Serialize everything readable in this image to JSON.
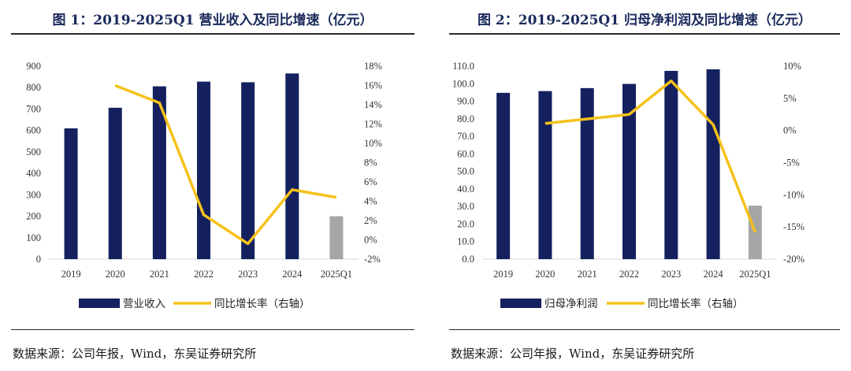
{
  "charts": [
    {
      "title": "图 1：2019-2025Q1 营业收入及同比增速（亿元）",
      "source": "数据来源：公司年报，Wind，东吴证券研究所",
      "chart_data": {
        "type": "bar",
        "categories": [
          "2019",
          "2020",
          "2021",
          "2022",
          "2023",
          "2024",
          "2025Q1"
        ],
        "series": [
          {
            "name": "营业收入",
            "type": "bar",
            "axis": "left",
            "values": [
              610,
              706,
              806,
              828,
              825,
              866,
              200
            ],
            "colors": [
              "#14215e",
              "#14215e",
              "#14215e",
              "#14215e",
              "#14215e",
              "#14215e",
              "#a6a6a6"
            ]
          },
          {
            "name": "同比增长率（右轴）",
            "type": "line",
            "axis": "right",
            "color": "#f5c21b",
            "values": [
              null,
              16.0,
              14.2,
              2.6,
              -0.4,
              5.2,
              4.4
            ]
          }
        ],
        "left_axis": {
          "min": 0,
          "max": 900,
          "ticks": [
            "0",
            "100",
            "200",
            "300",
            "400",
            "500",
            "600",
            "700",
            "800",
            "900"
          ]
        },
        "right_axis": {
          "min": -2,
          "max": 18,
          "ticks": [
            "-2%",
            "0%",
            "2%",
            "4%",
            "6%",
            "8%",
            "10%",
            "12%",
            "14%",
            "16%",
            "18%"
          ]
        },
        "legend_position": "bottom",
        "grid": false
      }
    },
    {
      "title": "图 2：2019-2025Q1 归母净利润及同比增速（亿元）",
      "source": "数据来源：公司年报，Wind，东吴证券研究所",
      "chart_data": {
        "type": "bar",
        "categories": [
          "2019",
          "2020",
          "2021",
          "2022",
          "2023",
          "2024",
          "2025Q1"
        ],
        "series": [
          {
            "name": "归母净利润",
            "type": "bar",
            "axis": "left",
            "values": [
              94.8,
              95.8,
              97.5,
              99.9,
              107.3,
              108.2,
              30.5
            ],
            "colors": [
              "#14215e",
              "#14215e",
              "#14215e",
              "#14215e",
              "#14215e",
              "#14215e",
              "#a6a6a6"
            ]
          },
          {
            "name": "同比增长率（右轴）",
            "type": "line",
            "axis": "right",
            "color": "#f5c21b",
            "values": [
              null,
              1.1,
              1.8,
              2.5,
              7.7,
              0.9,
              -15.8
            ]
          }
        ],
        "left_axis": {
          "min": 0,
          "max": 110,
          "ticks": [
            "0.0",
            "10.0",
            "20.0",
            "30.0",
            "40.0",
            "50.0",
            "60.0",
            "70.0",
            "80.0",
            "90.0",
            "100.0",
            "110.0"
          ]
        },
        "right_axis": {
          "min": -20,
          "max": 10,
          "ticks": [
            "-20%",
            "-15%",
            "-10%",
            "-5%",
            "0%",
            "5%",
            "10%"
          ]
        },
        "legend_position": "bottom",
        "grid": false
      }
    }
  ]
}
